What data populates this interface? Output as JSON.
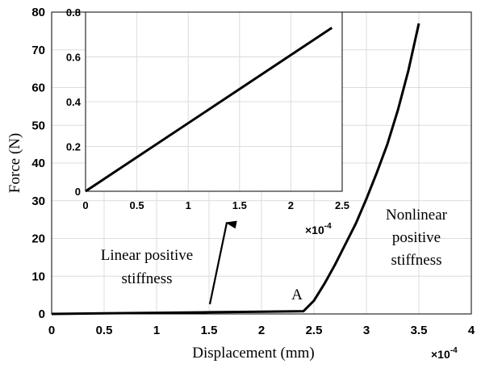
{
  "chart_data": [
    {
      "type": "line",
      "xlabel": "Displacement (mm)",
      "ylabel": "Force (N)",
      "xlim": [
        0,
        4
      ],
      "ylim": [
        0,
        80
      ],
      "x_ticks": [
        "0",
        "0.5",
        "1",
        "1.5",
        "2",
        "2.5",
        "3",
        "3.5",
        "4"
      ],
      "y_ticks": [
        "0",
        "10",
        "20",
        "30",
        "40",
        "50",
        "60",
        "70",
        "80"
      ],
      "x_multiplier": "×10",
      "x_multiplier_exp": "-4",
      "grid": true,
      "series": [
        {
          "x": [
            0,
            0.5,
            1,
            1.5,
            2,
            2.4,
            2.5,
            2.6,
            2.7,
            2.8,
            2.9,
            3.0,
            3.1,
            3.2,
            3.3,
            3.4,
            3.5
          ],
          "y": [
            0,
            0.15,
            0.3,
            0.45,
            0.6,
            0.72,
            3.5,
            8,
            13,
            18.5,
            24,
            30.5,
            37.5,
            45,
            54,
            64.5,
            77
          ]
        }
      ],
      "annotations": {
        "point_label": "A",
        "linear_label": [
          "Linear positive",
          "stiffness"
        ],
        "nonlinear_label": [
          "Nonlinear",
          "positive",
          "stiffness"
        ]
      }
    },
    {
      "type": "line",
      "xlim": [
        0,
        2.5
      ],
      "ylim": [
        0,
        0.8
      ],
      "x_ticks": [
        "0",
        "0.5",
        "1",
        "1.5",
        "2",
        "2.5"
      ],
      "y_ticks": [
        "0",
        "0.2",
        "0.4",
        "0.6",
        "0.8"
      ],
      "x_multiplier": "×10",
      "x_multiplier_exp": "-4",
      "grid": true,
      "series": [
        {
          "x": [
            0,
            2.4
          ],
          "y": [
            0,
            0.73
          ]
        }
      ]
    }
  ]
}
